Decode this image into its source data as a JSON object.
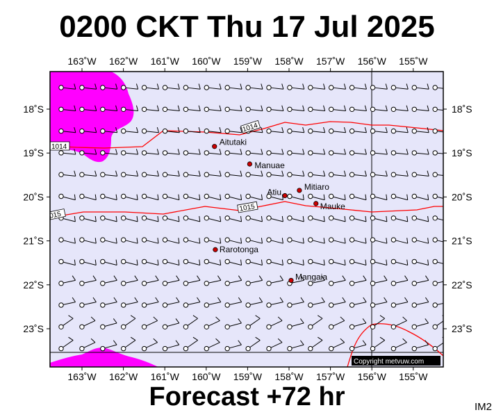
{
  "title": "0200 CKT Thu 17 Jul 2025",
  "footer": "Forecast +72 hr",
  "corner_label": "IM2",
  "copyright": "Copyright metvuw.com",
  "colors": {
    "sea": "#e6e6fa",
    "rain": "#ff00ff",
    "isobar": "#ff0000",
    "island": "#cc0000",
    "frame": "#000000"
  },
  "lon_ticks": [
    {
      "lon": -163,
      "label": "163˚W"
    },
    {
      "lon": -162,
      "label": "162˚W"
    },
    {
      "lon": -161,
      "label": "161˚W"
    },
    {
      "lon": -160,
      "label": "160˚W"
    },
    {
      "lon": -159,
      "label": "159˚W"
    },
    {
      "lon": -158,
      "label": "158˚W"
    },
    {
      "lon": -157,
      "label": "157˚W"
    },
    {
      "lon": -156,
      "label": "156˚W"
    },
    {
      "lon": -155,
      "label": "155˚W"
    }
  ],
  "lat_ticks": [
    {
      "lat": -18,
      "label": "18˚S"
    },
    {
      "lat": -19,
      "label": "19˚S"
    },
    {
      "lat": -20,
      "label": "20˚S"
    },
    {
      "lat": -21,
      "label": "21˚S"
    },
    {
      "lat": -22,
      "label": "22˚S"
    },
    {
      "lat": -23,
      "label": "23˚S"
    }
  ],
  "places": [
    {
      "name": "Aitutaki",
      "lon": -159.8,
      "lat": -18.85
    },
    {
      "name": "Manuae",
      "lon": -158.95,
      "lat": -19.25
    },
    {
      "name": "Atiu",
      "lon": -158.1,
      "lat": -19.97
    },
    {
      "name": "Mitiaro",
      "lon": -157.75,
      "lat": -19.85
    },
    {
      "name": "Mauke",
      "lon": -157.35,
      "lat": -20.15
    },
    {
      "name": "Rarotonga",
      "lon": -159.78,
      "lat": -21.2
    },
    {
      "name": "Mangaia",
      "lon": -157.95,
      "lat": -21.9
    }
  ],
  "isobar_labels": [
    "1014",
    "1014",
    "1015",
    "1015"
  ]
}
